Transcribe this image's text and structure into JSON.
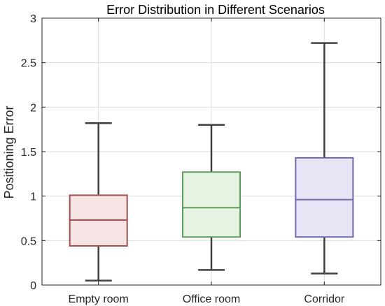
{
  "chart_data": {
    "type": "box",
    "title": "Error Distribution in Different Scenarios",
    "xlabel": "",
    "ylabel": "Positioning Error",
    "ylim": [
      0,
      3
    ],
    "yticks": [
      "0",
      "0.5",
      "1",
      "1.5",
      "2",
      "2.5",
      "3"
    ],
    "grid": true,
    "categories": [
      "Empty room",
      "Office room",
      "Corridor"
    ],
    "boxes": [
      {
        "category": "Empty room",
        "min": 0.05,
        "q1": 0.44,
        "median": 0.73,
        "q3": 1.01,
        "max": 1.82,
        "edge_color": "#A0504F",
        "fill_color": "#F6E3E3"
      },
      {
        "category": "Office room",
        "min": 0.17,
        "q1": 0.54,
        "median": 0.87,
        "q3": 1.27,
        "max": 1.8,
        "edge_color": "#5C9C5C",
        "fill_color": "#E6F3E3"
      },
      {
        "category": "Corridor",
        "min": 0.13,
        "q1": 0.54,
        "median": 0.96,
        "q3": 1.43,
        "max": 2.72,
        "edge_color": "#6F6AAE",
        "fill_color": "#E6E5F5"
      }
    ]
  }
}
